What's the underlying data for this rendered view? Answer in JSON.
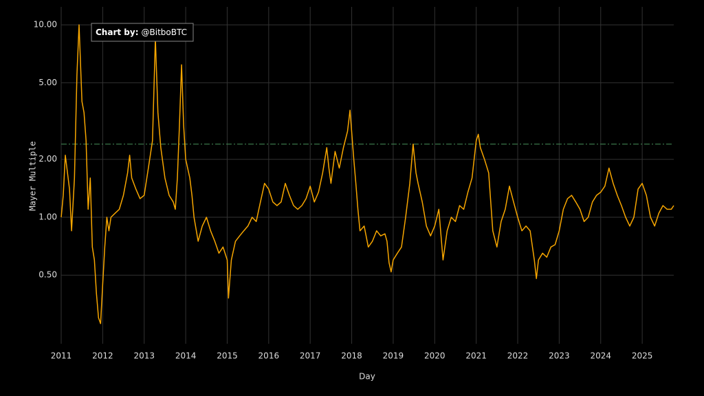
{
  "chart_data": {
    "type": "line",
    "y_label": "Mayer Multiple",
    "x_label": "Day",
    "annotation": {
      "label": "Chart by:",
      "text": "@BitboBTC"
    },
    "log_y": true,
    "grid": true,
    "xlim": [
      2011,
      2025.76
    ],
    "ylim": [
      0.22,
      12.4
    ],
    "xticks": [
      2011,
      2012,
      2013,
      2014,
      2015,
      2016,
      2017,
      2018,
      2019,
      2020,
      2021,
      2022,
      2023,
      2024,
      2025
    ],
    "yticks": [
      {
        "value": 0.5,
        "label": "0.50"
      },
      {
        "value": 1,
        "label": "1.00"
      },
      {
        "value": 2,
        "label": "2.00"
      },
      {
        "value": 5,
        "label": "5.00"
      },
      {
        "value": 10,
        "label": "10.00"
      }
    ],
    "reference_lines": [
      {
        "value": 2.4,
        "color": "#3f7f4f"
      }
    ],
    "x": [
      2011.0,
      2011.05,
      2011.1,
      2011.2,
      2011.25,
      2011.32,
      2011.38,
      2011.43,
      2011.5,
      2011.55,
      2011.6,
      2011.65,
      2011.7,
      2011.75,
      2011.8,
      2011.85,
      2011.9,
      2011.95,
      2012.0,
      2012.05,
      2012.1,
      2012.15,
      2012.2,
      2012.3,
      2012.4,
      2012.5,
      2012.6,
      2012.65,
      2012.7,
      2012.8,
      2012.9,
      2013.0,
      2013.1,
      2013.2,
      2013.27,
      2013.33,
      2013.4,
      2013.5,
      2013.6,
      2013.7,
      2013.75,
      2013.8,
      2013.85,
      2013.9,
      2013.95,
      2014.0,
      2014.1,
      2014.15,
      2014.2,
      2014.3,
      2014.4,
      2014.5,
      2014.6,
      2014.7,
      2014.8,
      2014.9,
      2015.0,
      2015.03,
      2015.1,
      2015.2,
      2015.3,
      2015.4,
      2015.5,
      2015.6,
      2015.7,
      2015.8,
      2015.9,
      2016.0,
      2016.1,
      2016.2,
      2016.3,
      2016.4,
      2016.5,
      2016.6,
      2016.7,
      2016.8,
      2016.9,
      2017.0,
      2017.1,
      2017.2,
      2017.3,
      2017.4,
      2017.45,
      2017.5,
      2017.6,
      2017.7,
      2017.8,
      2017.9,
      2017.96,
      2018.05,
      2018.1,
      2018.15,
      2018.2,
      2018.3,
      2018.4,
      2018.5,
      2018.6,
      2018.7,
      2018.8,
      2018.85,
      2018.9,
      2018.95,
      2019.0,
      2019.1,
      2019.2,
      2019.3,
      2019.4,
      2019.48,
      2019.55,
      2019.6,
      2019.7,
      2019.8,
      2019.9,
      2020.0,
      2020.1,
      2020.2,
      2020.3,
      2020.4,
      2020.5,
      2020.6,
      2020.7,
      2020.8,
      2020.9,
      2021.0,
      2021.05,
      2021.1,
      2021.2,
      2021.3,
      2021.4,
      2021.5,
      2021.6,
      2021.7,
      2021.8,
      2021.9,
      2022.0,
      2022.1,
      2022.2,
      2022.3,
      2022.4,
      2022.45,
      2022.5,
      2022.6,
      2022.7,
      2022.8,
      2022.9,
      2023.0,
      2023.1,
      2023.2,
      2023.3,
      2023.4,
      2023.5,
      2023.6,
      2023.7,
      2023.8,
      2023.9,
      2024.0,
      2024.1,
      2024.2,
      2024.3,
      2024.4,
      2024.5,
      2024.6,
      2024.7,
      2024.8,
      2024.9,
      2025.0,
      2025.1,
      2025.2,
      2025.3,
      2025.4,
      2025.5,
      2025.6,
      2025.7,
      2025.76
    ],
    "series": [
      {
        "name": "Mayer Multiple",
        "color": "#f7a600",
        "values": [
          1.0,
          1.3,
          2.1,
          1.4,
          0.85,
          1.6,
          5.5,
          10.0,
          4.0,
          3.5,
          2.5,
          1.1,
          1.6,
          0.7,
          0.6,
          0.4,
          0.3,
          0.28,
          0.45,
          0.7,
          1.0,
          0.85,
          1.0,
          1.05,
          1.1,
          1.3,
          1.7,
          2.1,
          1.6,
          1.4,
          1.25,
          1.3,
          1.8,
          2.5,
          8.5,
          3.5,
          2.3,
          1.6,
          1.3,
          1.2,
          1.1,
          1.6,
          3.0,
          6.2,
          3.0,
          2.0,
          1.6,
          1.3,
          1.0,
          0.75,
          0.9,
          1.0,
          0.85,
          0.75,
          0.65,
          0.7,
          0.6,
          0.38,
          0.6,
          0.75,
          0.8,
          0.85,
          0.9,
          1.0,
          0.95,
          1.2,
          1.5,
          1.4,
          1.2,
          1.15,
          1.2,
          1.5,
          1.3,
          1.15,
          1.1,
          1.15,
          1.25,
          1.45,
          1.2,
          1.35,
          1.7,
          2.3,
          1.8,
          1.5,
          2.2,
          1.8,
          2.3,
          2.8,
          3.6,
          2.0,
          1.5,
          1.1,
          0.85,
          0.9,
          0.7,
          0.75,
          0.85,
          0.8,
          0.82,
          0.75,
          0.58,
          0.52,
          0.6,
          0.65,
          0.7,
          1.0,
          1.5,
          2.4,
          1.7,
          1.5,
          1.2,
          0.9,
          0.8,
          0.9,
          1.1,
          0.6,
          0.85,
          1.0,
          0.95,
          1.15,
          1.1,
          1.35,
          1.6,
          2.5,
          2.7,
          2.3,
          2.0,
          1.7,
          0.85,
          0.7,
          0.95,
          1.1,
          1.45,
          1.2,
          1.0,
          0.85,
          0.9,
          0.85,
          0.6,
          0.48,
          0.6,
          0.65,
          0.62,
          0.7,
          0.72,
          0.85,
          1.1,
          1.25,
          1.3,
          1.2,
          1.1,
          0.95,
          1.0,
          1.2,
          1.3,
          1.35,
          1.45,
          1.8,
          1.5,
          1.3,
          1.15,
          1.0,
          0.9,
          1.0,
          1.4,
          1.5,
          1.3,
          1.0,
          0.9,
          1.05,
          1.15,
          1.1,
          1.1,
          1.15
        ]
      }
    ]
  }
}
